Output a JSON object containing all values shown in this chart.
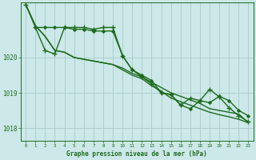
{
  "bg_color": "#cce8e8",
  "plot_bg": "#cce8e8",
  "grid_color": "#aacccc",
  "line_color": "#1e6b1e",
  "text_color": "#1e6b1e",
  "xlabel": "Graphe pression niveau de la mer (hPa)",
  "xlim": [
    -0.5,
    23.5
  ],
  "ylim": [
    1017.65,
    1021.55
  ],
  "yticks": [
    1018,
    1019,
    1020
  ],
  "xticks": [
    0,
    1,
    2,
    3,
    4,
    5,
    6,
    7,
    8,
    9,
    10,
    11,
    12,
    13,
    14,
    15,
    16,
    17,
    18,
    19,
    20,
    21,
    22,
    23
  ],
  "series": [
    {
      "x": [
        0,
        1,
        2,
        3,
        4,
        5,
        6,
        7,
        8,
        9,
        10,
        11,
        12,
        13,
        14,
        15,
        16,
        17,
        18,
        19,
        20,
        21,
        22,
        23
      ],
      "y": [
        1021.5,
        1020.9,
        1020.6,
        1020.2,
        1020.15,
        1020.0,
        1019.95,
        1019.9,
        1019.85,
        1019.8,
        1019.7,
        1019.55,
        1019.45,
        1019.3,
        1019.15,
        1019.0,
        1018.9,
        1018.8,
        1018.7,
        1018.55,
        1018.5,
        1018.45,
        1018.4,
        1018.15
      ],
      "marker": null,
      "linewidth": 1.0
    },
    {
      "x": [
        0,
        1,
        2,
        3,
        4,
        5,
        6,
        7,
        8,
        9,
        10,
        11,
        12,
        13,
        14,
        15,
        16,
        17,
        18,
        19,
        20,
        21,
        22,
        23
      ],
      "y": [
        1021.5,
        1020.9,
        1020.6,
        1020.2,
        1020.15,
        1020.0,
        1019.95,
        1019.9,
        1019.85,
        1019.8,
        1019.65,
        1019.5,
        1019.4,
        1019.2,
        1019.05,
        1018.85,
        1018.75,
        1018.65,
        1018.55,
        1018.45,
        1018.38,
        1018.32,
        1018.25,
        1018.15
      ],
      "marker": null,
      "linewidth": 1.0
    },
    {
      "x": [
        1,
        2,
        3,
        4,
        5,
        6,
        7,
        8,
        9,
        10,
        11,
        12,
        13,
        14,
        15,
        16,
        17,
        18,
        19,
        20,
        21,
        22,
        23
      ],
      "y": [
        1020.85,
        1020.85,
        1020.85,
        1020.85,
        1020.8,
        1020.8,
        1020.75,
        1020.75,
        1020.75,
        1020.05,
        1019.65,
        1019.5,
        1019.35,
        1019.0,
        1018.95,
        1018.65,
        1018.55,
        1018.78,
        1018.72,
        1018.9,
        1018.78,
        1018.5,
        1018.35
      ],
      "marker": "D",
      "markersize": 2.0,
      "linewidth": 1.0
    },
    {
      "x": [
        0,
        1,
        2,
        3,
        4,
        5,
        6,
        7,
        8,
        9,
        10,
        11,
        12,
        13,
        14,
        15,
        16,
        17,
        18,
        19,
        20,
        21,
        22,
        23
      ],
      "y": [
        1021.5,
        1020.85,
        1020.2,
        1020.1,
        1020.85,
        1020.85,
        1020.85,
        1020.8,
        1020.85,
        1020.85,
        1020.05,
        1019.65,
        1019.45,
        1019.25,
        1019.0,
        1018.95,
        1018.65,
        1018.85,
        1018.78,
        1019.1,
        1018.88,
        1018.58,
        1018.35,
        1018.18
      ],
      "marker": "+",
      "markersize": 4,
      "markeredgewidth": 1.0,
      "linewidth": 1.0
    }
  ]
}
